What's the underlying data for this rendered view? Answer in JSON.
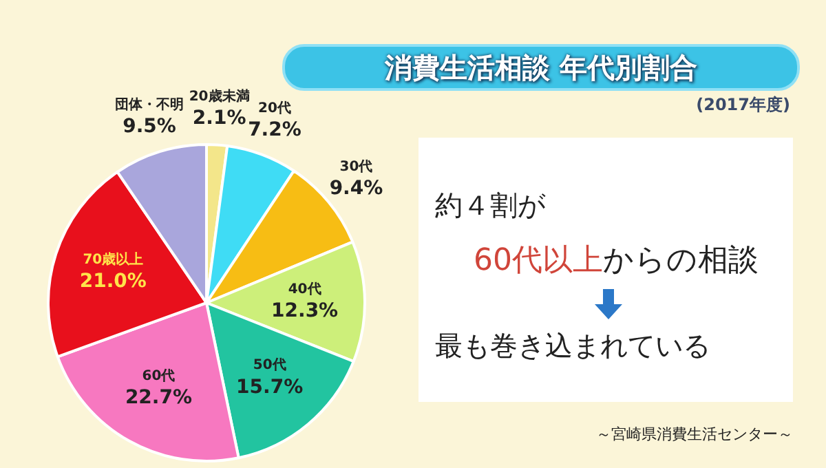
{
  "chart_data": {
    "type": "pie",
    "title": "消費生活相談 年代別割合",
    "subtitle": "(2017年度)",
    "categories": [
      "20歳未満",
      "20代",
      "30代",
      "40代",
      "50代",
      "60代",
      "70歳以上",
      "団体・不明"
    ],
    "values": [
      2.1,
      7.2,
      9.4,
      12.3,
      15.7,
      22.7,
      21.0,
      9.5
    ],
    "value_labels": [
      "2.1%",
      "7.2%",
      "9.4%",
      "12.3%",
      "15.7%",
      "22.7%",
      "21.0%",
      "9.5%"
    ],
    "colors": [
      "#f3e68a",
      "#3fdcf5",
      "#f7bd14",
      "#cdef7a",
      "#22c4a0",
      "#f778c0",
      "#e8101c",
      "#a9a6dc"
    ],
    "legend": false,
    "annotations": [
      "約４割が",
      "60代以上",
      "からの相談",
      "最も巻き込まれている",
      "～宮崎県消費生活センター～"
    ]
  }
}
